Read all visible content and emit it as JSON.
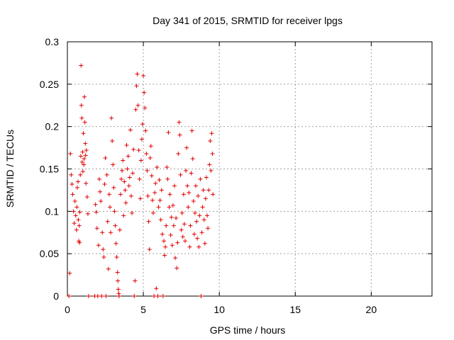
{
  "chart_data": {
    "type": "scatter",
    "title": "Day 341 of 2015, SRMTID for receiver lpgs",
    "xlabel": "GPS time / hours",
    "ylabel": "SRMTID / TECUs",
    "xlim": [
      0,
      24
    ],
    "ylim": [
      0,
      0.3
    ],
    "xticks": [
      0,
      5,
      10,
      15,
      20
    ],
    "xtick_labels": [
      "0",
      "5",
      "10",
      "15",
      "20"
    ],
    "yticks": [
      0,
      0.05,
      0.1,
      0.15,
      0.2,
      0.25,
      0.3
    ],
    "ytick_labels": [
      "0",
      "0.05",
      "0.1",
      "0.15",
      "0.2",
      "0.25",
      "0.3"
    ],
    "grid": true,
    "marker": "+",
    "color": "#e00000",
    "series": [
      {
        "points": [
          [
            0.1,
            0.0
          ],
          [
            0.15,
            0.027
          ],
          [
            0.2,
            0.168
          ],
          [
            0.25,
            0.143
          ],
          [
            0.3,
            0.132
          ],
          [
            0.35,
            0.12
          ],
          [
            0.4,
            0.1
          ],
          [
            0.45,
            0.086
          ],
          [
            0.5,
            0.112
          ],
          [
            0.55,
            0.095
          ],
          [
            0.6,
            0.078
          ],
          [
            0.62,
            0.105
          ],
          [
            0.65,
            0.128
          ],
          [
            0.7,
            0.135
          ],
          [
            0.72,
            0.09
          ],
          [
            0.75,
            0.065
          ],
          [
            0.78,
            0.083
          ],
          [
            0.8,
            0.063
          ],
          [
            0.82,
            0.099
          ],
          [
            0.85,
            0.143
          ],
          [
            0.88,
            0.165
          ],
          [
            0.9,
            0.272
          ],
          [
            0.92,
            0.225
          ],
          [
            0.95,
            0.21
          ],
          [
            0.97,
            0.158
          ],
          [
            1.0,
            0.17
          ],
          [
            1.02,
            0.147
          ],
          [
            1.05,
            0.192
          ],
          [
            1.08,
            0.155
          ],
          [
            1.1,
            0.162
          ],
          [
            1.12,
            0.235
          ],
          [
            1.15,
            0.205
          ],
          [
            1.18,
            0.18
          ],
          [
            1.2,
            0.166
          ],
          [
            1.22,
            0.133
          ],
          [
            1.25,
            0.172
          ],
          [
            1.3,
            0.117
          ],
          [
            1.35,
            0.097
          ],
          [
            1.4,
            0.0
          ],
          [
            1.8,
            0.0
          ],
          [
            1.85,
            0.108
          ],
          [
            1.9,
            0.099
          ],
          [
            1.95,
            0.08
          ],
          [
            2.0,
            0.0
          ],
          [
            2.05,
            0.06
          ],
          [
            2.1,
            0.138
          ],
          [
            2.15,
            0.123
          ],
          [
            2.2,
            0.112
          ],
          [
            2.25,
            0.0
          ],
          [
            2.3,
            0.075
          ],
          [
            2.35,
            0.055
          ],
          [
            2.4,
            0.046
          ],
          [
            2.45,
            0.132
          ],
          [
            2.5,
            0.163
          ],
          [
            2.55,
            0.0
          ],
          [
            2.6,
            0.143
          ],
          [
            2.65,
            0.088
          ],
          [
            2.7,
            0.032
          ],
          [
            2.75,
            0.12
          ],
          [
            2.8,
            0.105
          ],
          [
            2.85,
            0.075
          ],
          [
            2.9,
            0.21
          ],
          [
            2.95,
            0.183
          ],
          [
            3.0,
            0.155
          ],
          [
            3.05,
            0.128
          ],
          [
            3.1,
            0.1
          ],
          [
            3.15,
            0.083
          ],
          [
            3.2,
            0.062
          ],
          [
            3.25,
            0.046
          ],
          [
            3.3,
            0.028
          ],
          [
            3.32,
            0.018
          ],
          [
            3.35,
            0.008
          ],
          [
            3.38,
            0.003
          ],
          [
            3.4,
            0.0
          ],
          [
            3.45,
            0.078
          ],
          [
            3.5,
            0.12
          ],
          [
            3.55,
            0.138
          ],
          [
            3.6,
            0.148
          ],
          [
            3.65,
            0.16
          ],
          [
            3.7,
            0.095
          ],
          [
            3.75,
            0.135
          ],
          [
            3.8,
            0.125
          ],
          [
            3.85,
            0.11
          ],
          [
            3.9,
            0.178
          ],
          [
            3.95,
            0.15
          ],
          [
            4.0,
            0.165
          ],
          [
            4.05,
            0.13
          ],
          [
            4.1,
            0.14
          ],
          [
            4.15,
            0.196
          ],
          [
            4.2,
            0.118
          ],
          [
            4.25,
            0.098
          ],
          [
            4.3,
            0.145
          ],
          [
            4.35,
            0.173
          ],
          [
            4.4,
            0.0
          ],
          [
            4.45,
            0.018
          ],
          [
            4.5,
            0.22
          ],
          [
            4.55,
            0.248
          ],
          [
            4.6,
            0.262
          ],
          [
            4.65,
            0.225
          ],
          [
            4.7,
            0.172
          ],
          [
            4.75,
            0.138
          ],
          [
            4.8,
            0.115
          ],
          [
            4.85,
            0.16
          ],
          [
            4.9,
            0.185
          ],
          [
            4.95,
            0.203
          ],
          [
            5.0,
            0.26
          ],
          [
            5.05,
            0.24
          ],
          [
            5.1,
            0.222
          ],
          [
            5.15,
            0.195
          ],
          [
            5.2,
            0.168
          ],
          [
            5.25,
            0.148
          ],
          [
            5.3,
            0.118
          ],
          [
            5.35,
            0.088
          ],
          [
            5.4,
            0.055
          ],
          [
            5.45,
            0.163
          ],
          [
            5.5,
            0.177
          ],
          [
            5.55,
            0.142
          ],
          [
            5.6,
            0.113
          ],
          [
            5.65,
            0.098
          ],
          [
            5.7,
            0.0
          ],
          [
            5.75,
            0.122
          ],
          [
            5.8,
            0.133
          ],
          [
            5.85,
            0.009
          ],
          [
            5.9,
            0.152
          ],
          [
            5.95,
            0.0
          ],
          [
            6.0,
            0.105
          ],
          [
            6.05,
            0.137
          ],
          [
            6.1,
            0.113
          ],
          [
            6.15,
            0.09
          ],
          [
            6.2,
            0.125
          ],
          [
            6.25,
            0.073
          ],
          [
            6.3,
            0.0
          ],
          [
            6.35,
            0.065
          ],
          [
            6.4,
            0.048
          ],
          [
            6.45,
            0.058
          ],
          [
            6.5,
            0.083
          ],
          [
            6.55,
            0.152
          ],
          [
            6.6,
            0.138
          ],
          [
            6.65,
            0.193
          ],
          [
            6.7,
            0.105
          ],
          [
            6.75,
            0.12
          ],
          [
            6.8,
            0.072
          ],
          [
            6.85,
            0.093
          ],
          [
            6.9,
            0.06
          ],
          [
            6.95,
            0.107
          ],
          [
            7.0,
            0.083
          ],
          [
            7.05,
            0.13
          ],
          [
            7.1,
            0.045
          ],
          [
            7.15,
            0.092
          ],
          [
            7.2,
            0.033
          ],
          [
            7.25,
            0.063
          ],
          [
            7.3,
            0.168
          ],
          [
            7.35,
            0.205
          ],
          [
            7.4,
            0.19
          ],
          [
            7.45,
            0.143
          ],
          [
            7.5,
            0.078
          ],
          [
            7.55,
            0.098
          ],
          [
            7.6,
            0.07
          ],
          [
            7.65,
            0.12
          ],
          [
            7.7,
            0.085
          ],
          [
            7.75,
            0.065
          ],
          [
            7.8,
            0.148
          ],
          [
            7.85,
            0.175
          ],
          [
            7.9,
            0.13
          ],
          [
            7.95,
            0.105
          ],
          [
            8.0,
            0.122
          ],
          [
            8.05,
            0.058
          ],
          [
            8.1,
            0.083
          ],
          [
            8.15,
            0.145
          ],
          [
            8.2,
            0.195
          ],
          [
            8.25,
            0.162
          ],
          [
            8.3,
            0.112
          ],
          [
            8.35,
            0.073
          ],
          [
            8.4,
            0.098
          ],
          [
            8.45,
            0.13
          ],
          [
            8.5,
            0.088
          ],
          [
            8.55,
            0.068
          ],
          [
            8.6,
            0.118
          ],
          [
            8.65,
            0.058
          ],
          [
            8.7,
            0.095
          ],
          [
            8.75,
            0.138
          ],
          [
            8.8,
            0.0
          ],
          [
            8.85,
            0.075
          ],
          [
            8.9,
            0.105
          ],
          [
            8.95,
            0.125
          ],
          [
            9.0,
            0.09
          ],
          [
            9.05,
            0.062
          ],
          [
            9.1,
            0.115
          ],
          [
            9.15,
            0.14
          ],
          [
            9.2,
            0.095
          ],
          [
            9.25,
            0.08
          ],
          [
            9.3,
            0.125
          ],
          [
            9.35,
            0.155
          ],
          [
            9.4,
            0.183
          ],
          [
            9.45,
            0.148
          ],
          [
            9.5,
            0.192
          ],
          [
            9.55,
            0.168
          ],
          [
            9.58,
            0.12
          ]
        ]
      }
    ]
  }
}
